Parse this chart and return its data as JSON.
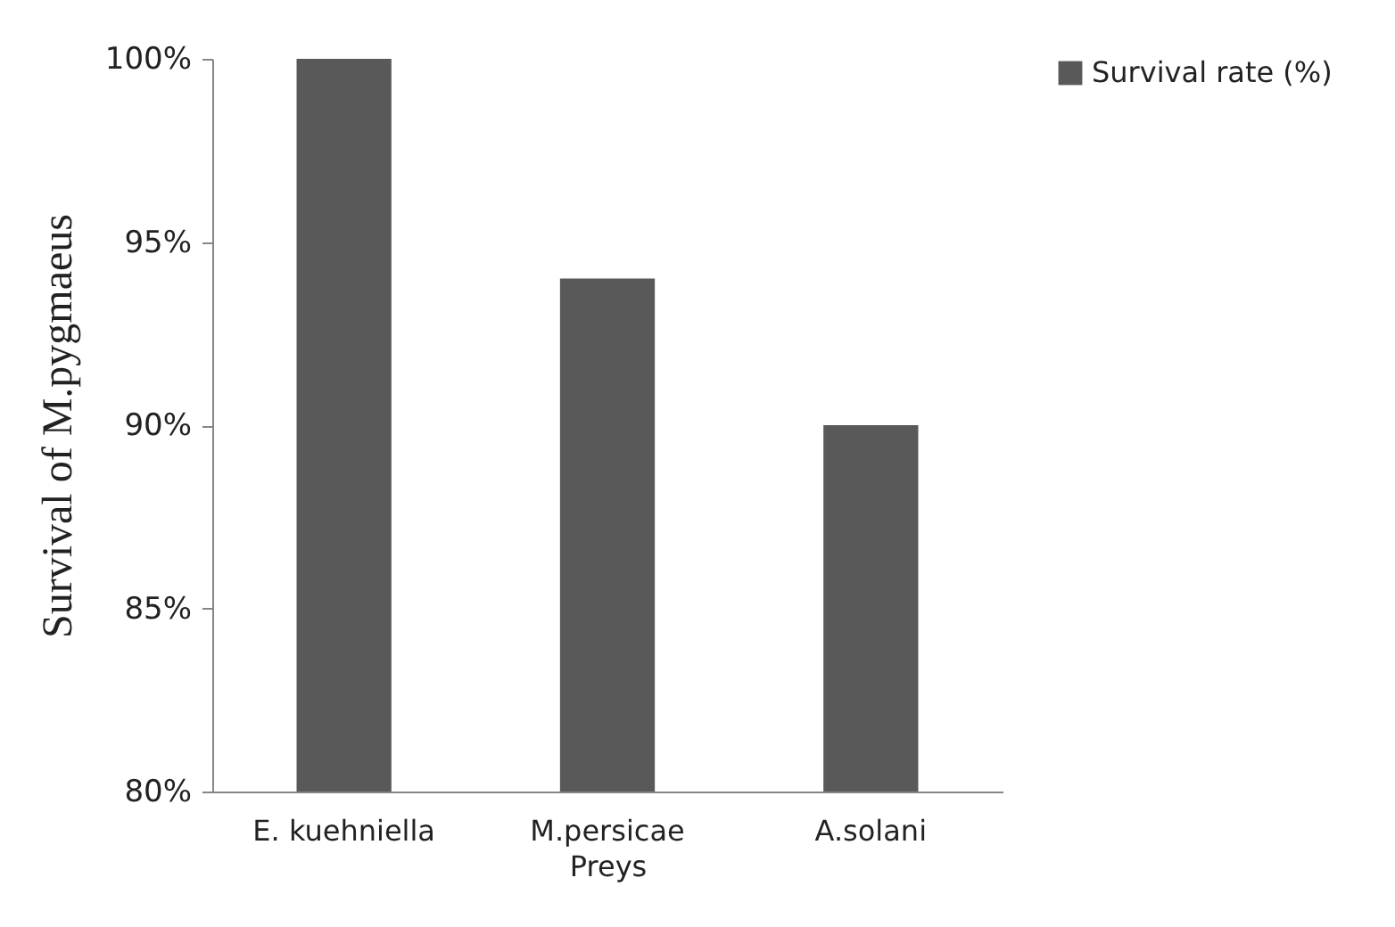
{
  "chart_data": {
    "type": "bar",
    "xlabel": "Preys",
    "ylabel": "Survival  of  M.pygmaeus",
    "categories": [
      "E. kuehniella",
      "M.persicae",
      "A.solani"
    ],
    "series": [
      {
        "name": "Survival rate (%)",
        "color": "#595959",
        "values": [
          100,
          94,
          90
        ]
      }
    ],
    "ylim": [
      80,
      100
    ],
    "yticks": [
      {
        "value": 80,
        "label": "80%"
      },
      {
        "value": 85,
        "label": "85%"
      },
      {
        "value": 90,
        "label": "90%"
      },
      {
        "value": 95,
        "label": "95%"
      },
      {
        "value": 100,
        "label": "100%"
      }
    ],
    "grid": false,
    "legend": "right"
  }
}
